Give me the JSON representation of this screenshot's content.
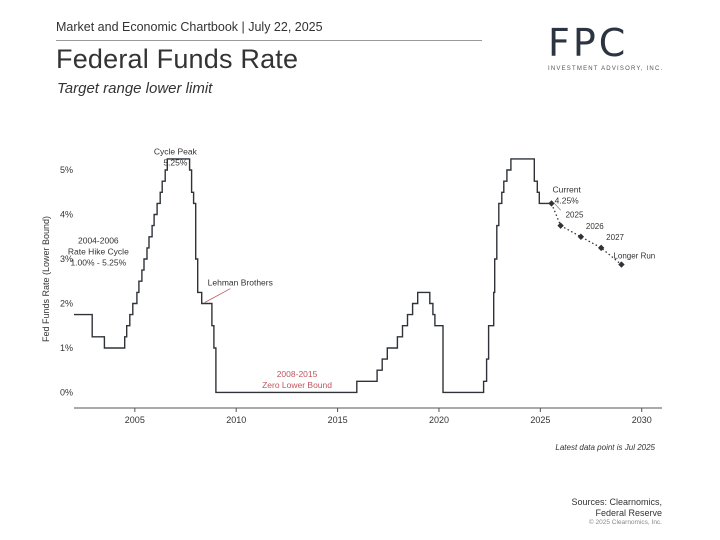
{
  "header": {
    "chartbook": "Market and Economic Chartbook | July 22, 2025",
    "title": "Federal Funds Rate",
    "subtitle": "Target range lower limit"
  },
  "logo": {
    "mark": "FPC",
    "tagline": "INVESTMENT ADVISORY, INC."
  },
  "footer": {
    "note": "Latest data point is Jul 2025",
    "sources_line1": "Sources: Clearnomics,",
    "sources_line2": "Federal Reserve",
    "copyright": "© 2025 Clearnomics, Inc."
  },
  "chart_data": {
    "type": "line",
    "ylabel": "Fed Funds Rate (Lower Bound)",
    "xlim": [
      2002.0,
      2031.0
    ],
    "ylim": [
      -0.35,
      5.9
    ],
    "x_ticks": [
      2005,
      2010,
      2015,
      2020,
      2025,
      2030
    ],
    "y_ticks": [
      {
        "value": 0,
        "label": "0%"
      },
      {
        "value": 1,
        "label": "1%"
      },
      {
        "value": 2,
        "label": "2%"
      },
      {
        "value": 3,
        "label": "3%"
      },
      {
        "value": 4,
        "label": "4%"
      },
      {
        "value": 5,
        "label": "5%"
      }
    ],
    "grid": false,
    "colors": {
      "line": "#2f3338",
      "projection": "#2f3338",
      "annotation_red": "#c0565e",
      "text": "#333333"
    },
    "series": [
      {
        "values": [
          [
            2002.0,
            1.75
          ],
          [
            2002.9,
            1.25
          ],
          [
            2003.5,
            1.0
          ],
          [
            2004.5,
            1.25
          ],
          [
            2004.6,
            1.5
          ],
          [
            2004.75,
            1.75
          ],
          [
            2004.9,
            2.0
          ],
          [
            2005.1,
            2.25
          ],
          [
            2005.2,
            2.5
          ],
          [
            2005.35,
            2.75
          ],
          [
            2005.45,
            3.0
          ],
          [
            2005.6,
            3.25
          ],
          [
            2005.7,
            3.5
          ],
          [
            2005.85,
            3.75
          ],
          [
            2005.95,
            4.0
          ],
          [
            2006.1,
            4.25
          ],
          [
            2006.25,
            4.5
          ],
          [
            2006.35,
            4.75
          ],
          [
            2006.5,
            5.0
          ],
          [
            2006.6,
            5.25
          ],
          [
            2007.7,
            5.0
          ],
          [
            2007.8,
            4.5
          ],
          [
            2007.9,
            4.25
          ],
          [
            2008.0,
            3.0
          ],
          [
            2008.1,
            2.25
          ],
          [
            2008.3,
            2.0
          ],
          [
            2008.8,
            1.5
          ],
          [
            2008.9,
            1.0
          ],
          [
            2009.0,
            0.0
          ],
          [
            2015.95,
            0.25
          ],
          [
            2016.95,
            0.5
          ],
          [
            2017.2,
            0.75
          ],
          [
            2017.45,
            1.0
          ],
          [
            2017.95,
            1.25
          ],
          [
            2018.2,
            1.5
          ],
          [
            2018.45,
            1.75
          ],
          [
            2018.7,
            2.0
          ],
          [
            2018.95,
            2.25
          ],
          [
            2019.55,
            2.0
          ],
          [
            2019.7,
            1.75
          ],
          [
            2019.8,
            1.5
          ],
          [
            2020.2,
            0.0
          ],
          [
            2022.2,
            0.25
          ],
          [
            2022.35,
            0.75
          ],
          [
            2022.45,
            1.5
          ],
          [
            2022.7,
            2.25
          ],
          [
            2022.75,
            3.0
          ],
          [
            2022.85,
            3.75
          ],
          [
            2022.95,
            4.25
          ],
          [
            2023.1,
            4.5
          ],
          [
            2023.2,
            4.75
          ],
          [
            2023.35,
            5.0
          ],
          [
            2023.55,
            5.25
          ],
          [
            2024.7,
            4.75
          ],
          [
            2024.85,
            4.5
          ],
          [
            2024.95,
            4.25
          ],
          [
            2025.55,
            4.25
          ]
        ]
      },
      {
        "name": "Projection",
        "style": "dotted",
        "values": [
          {
            "x": 2025.55,
            "y": 4.25,
            "label": ""
          },
          {
            "x": 2026.0,
            "y": 3.75,
            "label": "2025"
          },
          {
            "x": 2027.0,
            "y": 3.5,
            "label": "2026"
          },
          {
            "x": 2028.0,
            "y": 3.25,
            "label": "2027"
          },
          {
            "x": 2029.0,
            "y": 2.875,
            "label": "Longer Run"
          }
        ]
      }
    ],
    "annotations": [
      {
        "lines": [
          "Cycle Peak",
          "5.25%"
        ],
        "x": 2007.0,
        "y": 5.35,
        "anchor": "middle",
        "color": "#333333"
      },
      {
        "lines": [
          "2004-2006",
          "Rate Hike Cycle",
          "1.00% - 5.25%"
        ],
        "x": 2003.2,
        "y": 3.35,
        "anchor": "middle",
        "color": "#333333"
      },
      {
        "lines": [
          "Lehman Brothers"
        ],
        "x": 2010.2,
        "y": 2.4,
        "anchor": "middle",
        "color": "#333333",
        "pointer": [
          2008.35,
          2.0
        ]
      },
      {
        "lines": [
          "2008-2015",
          "Zero Lower Bound"
        ],
        "x": 2013.0,
        "y": 0.35,
        "anchor": "middle",
        "color": "#c0565e"
      },
      {
        "lines": [
          "Current",
          "4.25%"
        ],
        "x": 2026.3,
        "y": 4.5,
        "anchor": "middle",
        "color": "#333333",
        "pointer": [
          2025.55,
          4.25
        ]
      }
    ]
  }
}
